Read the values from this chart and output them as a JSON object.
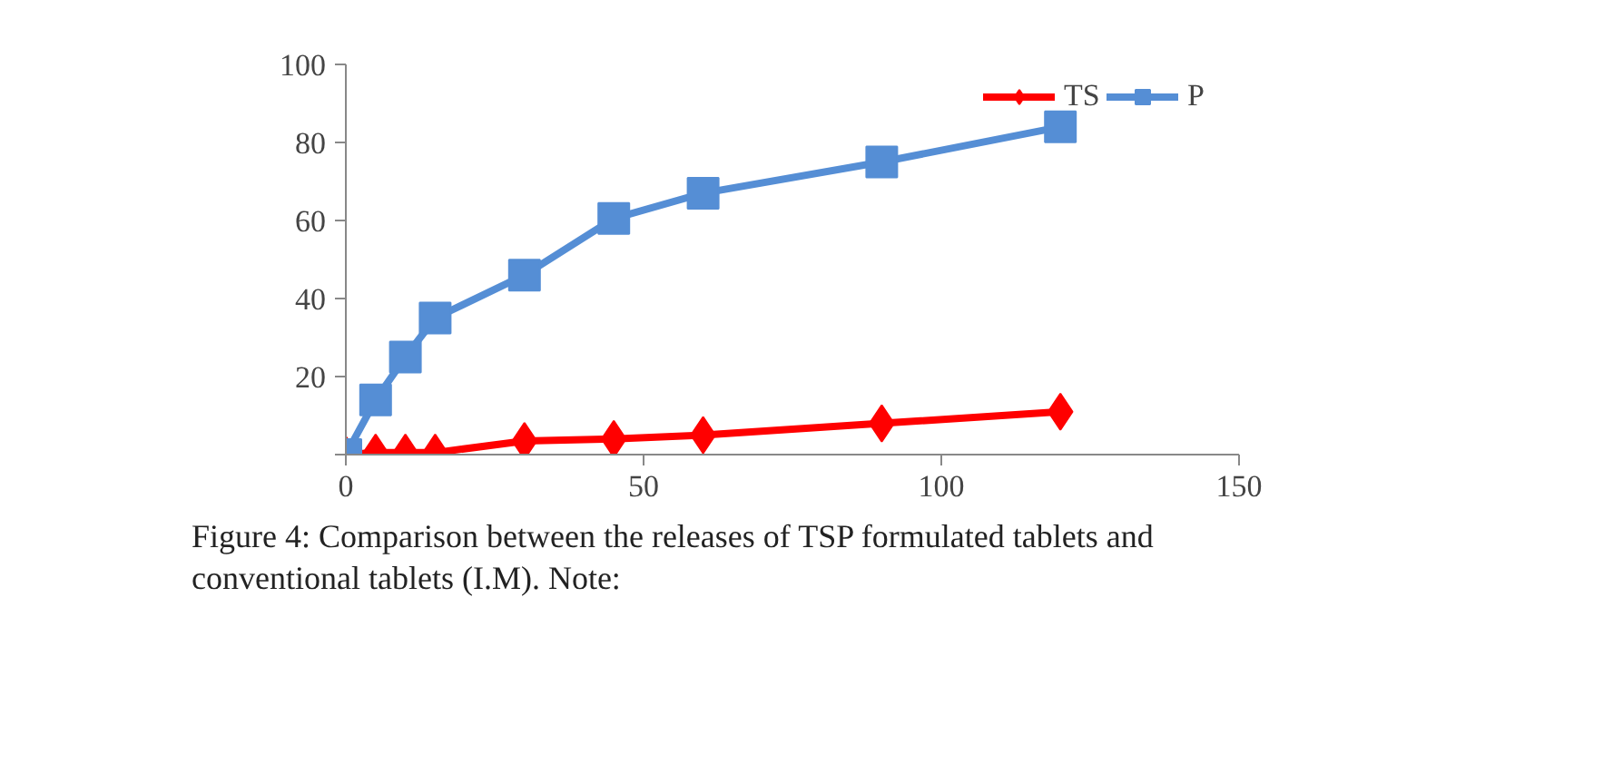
{
  "chart_data": {
    "type": "line",
    "annotations": [
      "Figure 4: Comparison between the releases of TSP formulated tablets and conventional tablets (I.M). Note:"
    ],
    "x": [
      0,
      5,
      10,
      15,
      30,
      45,
      60,
      90,
      120
    ],
    "series": [
      {
        "name": "TS",
        "color": "#ff0000",
        "marker": "diamond",
        "values": [
          0,
          0.5,
          0.5,
          0.5,
          3.5,
          4,
          5,
          8,
          11
        ]
      },
      {
        "name": "P",
        "color": "#558ed5",
        "marker": "square",
        "values": [
          0,
          14,
          25,
          35,
          46,
          60.5,
          67,
          75,
          84
        ]
      }
    ],
    "xlim": [
      0,
      150
    ],
    "xticks": [
      0,
      50,
      100,
      150
    ],
    "ylim": [
      0,
      100
    ],
    "yticks": [
      {
        "value": 0,
        "label": null
      },
      20,
      40,
      60,
      80,
      100
    ],
    "grid": false,
    "legend": "top right",
    "line_style": "solid"
  }
}
